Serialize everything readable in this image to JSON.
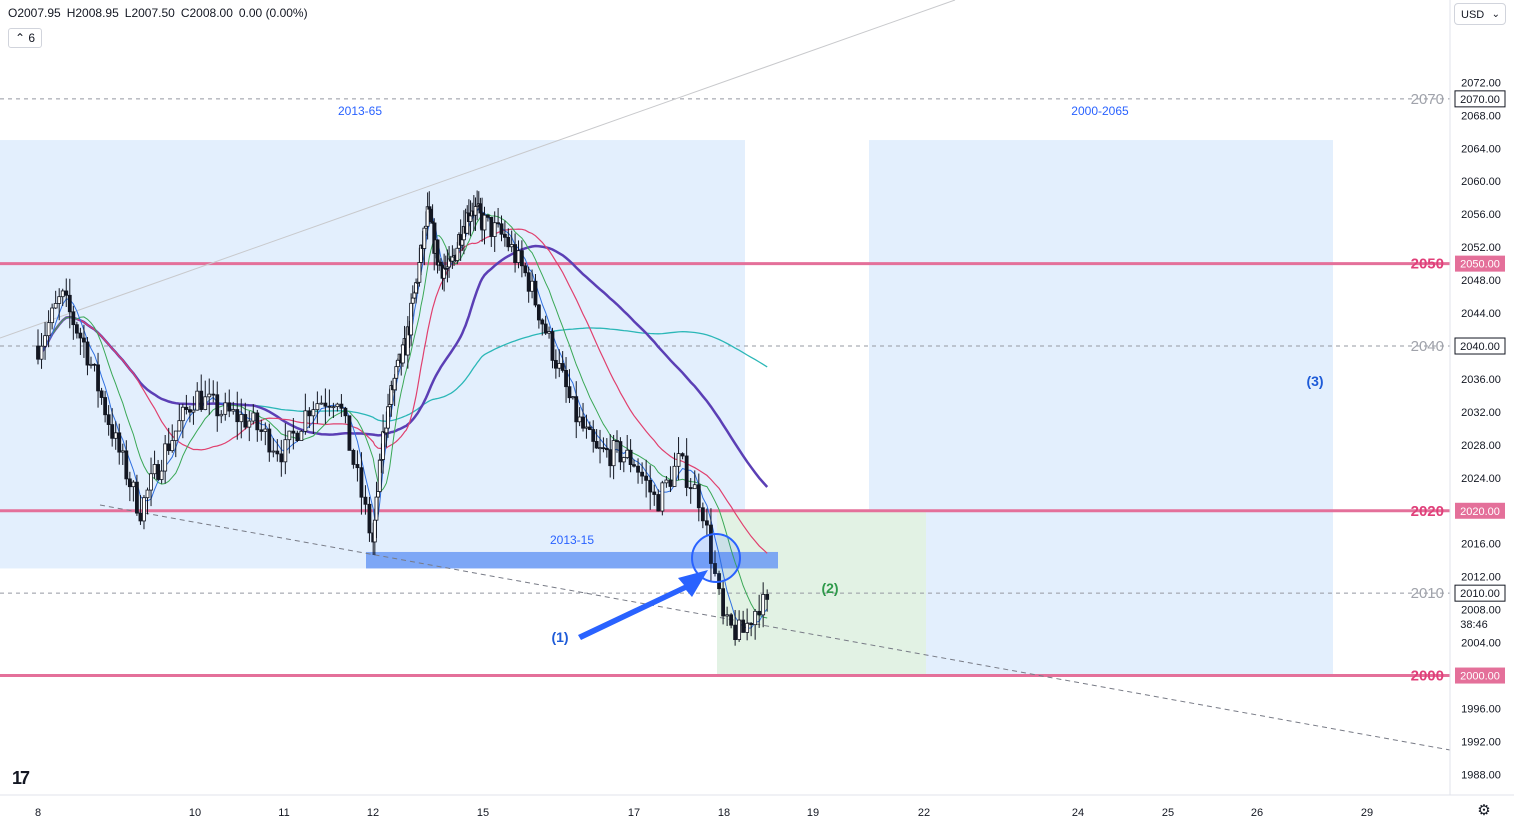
{
  "header": {
    "open": "O2007.95",
    "high": "H2008.95",
    "low": "L2007.50",
    "close": "C2008.00",
    "change": "0.00 (0.00%)",
    "interval_label": "6"
  },
  "currency": {
    "label": "USD"
  },
  "icons": {
    "logo": "tradingview-logo-icon",
    "settings": "gear-icon",
    "dropdown": "chevron-down-icon",
    "arrow": "arrow-annotation-icon"
  },
  "colors": {
    "key_level": "#e4709a",
    "zone_fill": "#e3effd",
    "target_fill": "#e2f2e4",
    "annotation_blue": "#2962ff",
    "ma_purple": "#5b3fb5",
    "ma_teal": "#2bb7b7",
    "ma_pink": "#e0406e",
    "ma_green": "#3aa856",
    "ma_blue": "#2f6fe0"
  },
  "chart_data": {
    "type": "candlestick",
    "ylim": [
      1985.5,
      2082
    ],
    "y_ticks": [
      "2072.00",
      "2068.00",
      "2064.00",
      "2060.00",
      "2056.00",
      "2052.00",
      "2048.00",
      "2044.00",
      "2036.00",
      "2032.00",
      "2028.00",
      "2024.00",
      "2016.00",
      "2012.00",
      "2008.00",
      "2004.00",
      "1996.00",
      "1992.00",
      "1988.00"
    ],
    "x_ticks": [
      {
        "label": "8",
        "day": 8
      },
      {
        "label": "10",
        "day": 10
      },
      {
        "label": "11",
        "day": 11
      },
      {
        "label": "12",
        "day": 12
      },
      {
        "label": "15",
        "day": 15
      },
      {
        "label": "17",
        "day": 17
      },
      {
        "label": "18",
        "day": 18
      },
      {
        "label": "19",
        "day": 19
      },
      {
        "label": "22",
        "day": 22
      },
      {
        "label": "24",
        "day": 24
      },
      {
        "label": "25",
        "day": 25
      },
      {
        "label": "26",
        "day": 26
      },
      {
        "label": "29",
        "day": 29
      }
    ],
    "horizontal_levels": [
      {
        "value": 2050,
        "label": "2050",
        "axis_label": "2050.00",
        "style": "key"
      },
      {
        "value": 2020,
        "label": "2020",
        "axis_label": "2020.00",
        "style": "key"
      },
      {
        "value": 2000,
        "label": "2000",
        "axis_label": "2000.00",
        "style": "key"
      },
      {
        "value": 2070,
        "label": "2070",
        "axis_label": "2070.00",
        "style": "dashed"
      },
      {
        "value": 2040,
        "label": "2040",
        "axis_label": "2040.00",
        "style": "dashed"
      },
      {
        "value": 2010,
        "label": "2010",
        "axis_label": "2010.00",
        "style": "dashed"
      }
    ],
    "price_countdown": "38:46",
    "zones": [
      {
        "label": "2013-65",
        "y_from": 2013,
        "y_to": 2065,
        "kind": "range"
      },
      {
        "label": "2000-2065",
        "y_from": 2000,
        "y_to": 2065,
        "kind": "range"
      },
      {
        "label": "2013-15",
        "y_from": 2013,
        "y_to": 2015,
        "kind": "support"
      },
      {
        "label": "",
        "y_from": 2000,
        "y_to": 2020,
        "kind": "target"
      }
    ],
    "annotations": [
      {
        "label": "(1)"
      },
      {
        "label": "(2)"
      },
      {
        "label": "(3)"
      }
    ],
    "price_path": [
      [
        8,
        2040
      ],
      [
        8.3,
        2046
      ],
      [
        8.6,
        2040
      ],
      [
        9,
        2028
      ],
      [
        9.3,
        2020
      ],
      [
        9.6,
        2027
      ],
      [
        10,
        2034
      ],
      [
        10.3,
        2032
      ],
      [
        10.6,
        2031
      ],
      [
        11,
        2027
      ],
      [
        11.3,
        2033
      ],
      [
        11.6,
        2034
      ],
      [
        12,
        2016
      ],
      [
        12.3,
        2030
      ],
      [
        12.6,
        2036
      ],
      [
        12.9,
        2040
      ],
      [
        13.2,
        2048
      ],
      [
        13.5,
        2056
      ],
      [
        13.8,
        2050
      ],
      [
        14.1,
        2049
      ],
      [
        14.4,
        2054
      ],
      [
        14.7,
        2057
      ],
      [
        15,
        2055
      ],
      [
        15.3,
        2053
      ],
      [
        15.6,
        2048
      ],
      [
        15.9,
        2040
      ],
      [
        16.2,
        2032
      ],
      [
        16.5,
        2027
      ],
      [
        16.8,
        2027
      ],
      [
        17,
        2026
      ],
      [
        17.25,
        2021
      ],
      [
        17.5,
        2026
      ],
      [
        17.75,
        2021
      ],
      [
        18,
        2006
      ],
      [
        18.2,
        2005
      ],
      [
        18.4,
        2009
      ],
      [
        18.5,
        2008
      ]
    ]
  }
}
